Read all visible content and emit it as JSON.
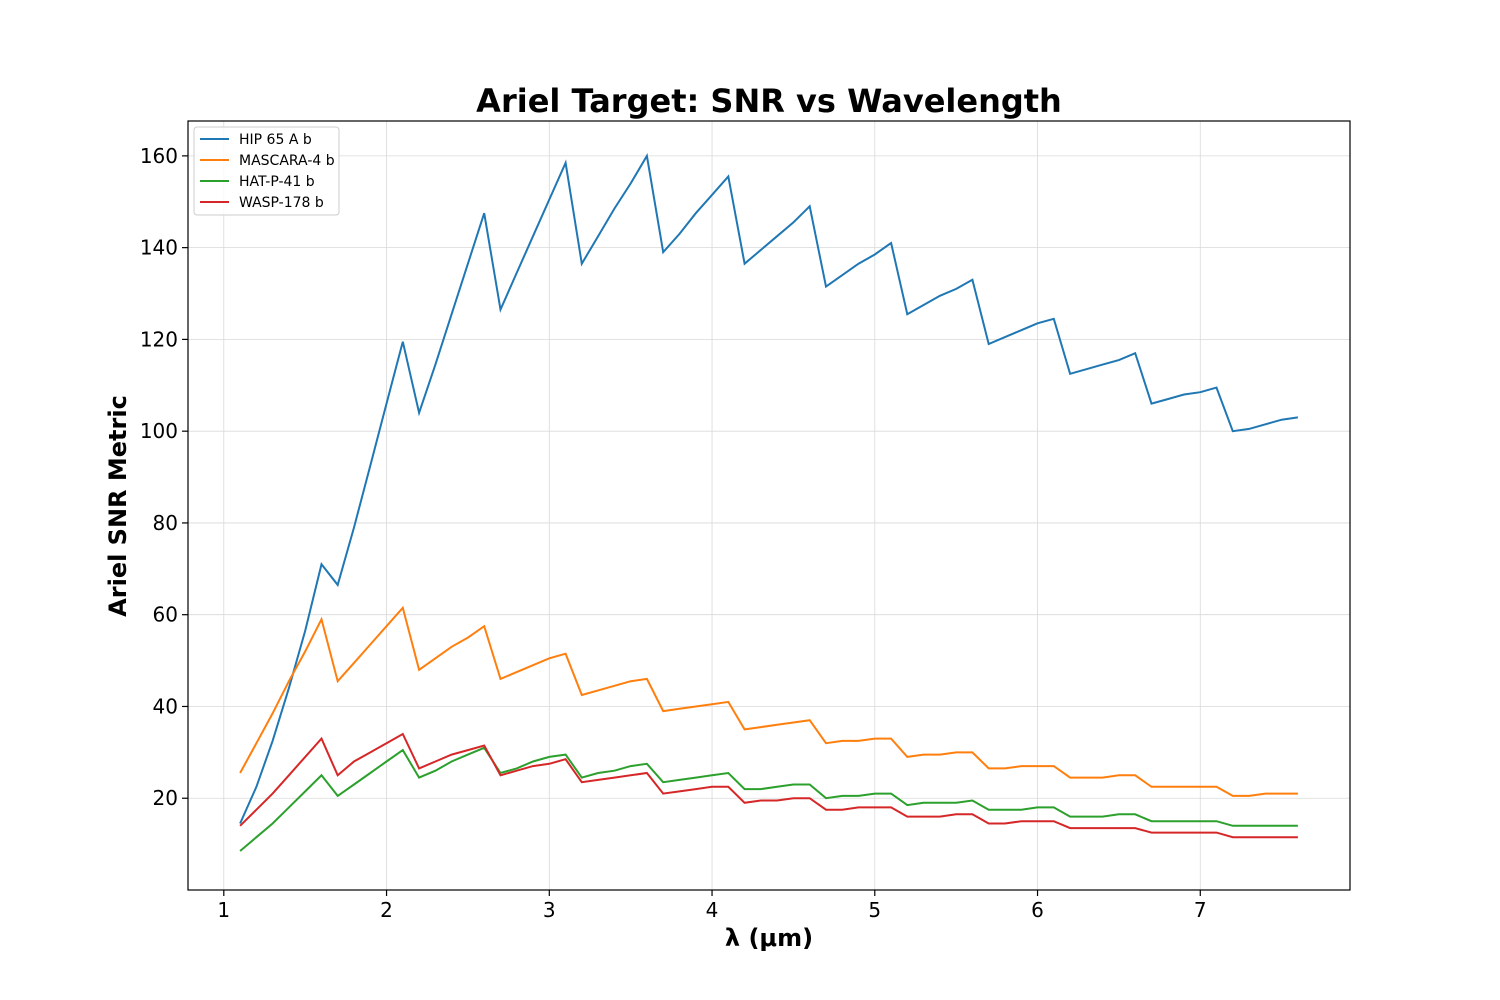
{
  "chart_data": {
    "type": "line",
    "title": "Ariel Target: SNR vs Wavelength",
    "xlabel": "λ (μm)",
    "ylabel": "Ariel SNR Metric",
    "xlim": [
      0.78,
      7.92
    ],
    "ylim": [
      0,
      167.6
    ],
    "xticks": [
      1,
      2,
      3,
      4,
      5,
      6,
      7
    ],
    "yticks": [
      20,
      40,
      60,
      80,
      100,
      120,
      140,
      160
    ],
    "grid": true,
    "legend_position": "upper-left",
    "x": [
      1.1,
      1.2,
      1.3,
      1.4,
      1.5,
      1.6,
      1.7,
      1.8,
      1.9,
      2.0,
      2.1,
      2.2,
      2.3,
      2.4,
      2.5,
      2.6,
      2.7,
      2.8,
      2.9,
      3.0,
      3.1,
      3.2,
      3.3,
      3.4,
      3.5,
      3.6,
      3.7,
      3.8,
      3.9,
      4.0,
      4.1,
      4.2,
      4.3,
      4.4,
      4.5,
      4.6,
      4.7,
      4.8,
      4.9,
      5.0,
      5.1,
      5.2,
      5.3,
      5.4,
      5.5,
      5.6,
      5.7,
      5.8,
      5.9,
      6.0,
      6.1,
      6.2,
      6.3,
      6.4,
      6.5,
      6.6,
      6.7,
      6.8,
      6.9,
      7.0,
      7.1,
      7.2,
      7.3,
      7.4,
      7.5,
      7.6
    ],
    "series": [
      {
        "name": "HIP 65 A b",
        "color": "#1f77b4",
        "values": [
          14.5,
          22.5,
          32.5,
          44.0,
          56.5,
          71.0,
          66.5,
          79.0,
          92.5,
          106.0,
          119.5,
          104.0,
          114.5,
          125.5,
          136.5,
          147.5,
          126.5,
          134.5,
          142.5,
          150.5,
          158.5,
          136.5,
          142.5,
          148.5,
          154.0,
          160.0,
          139.0,
          143.0,
          147.5,
          151.5,
          155.5,
          136.5,
          139.5,
          142.5,
          145.5,
          149.0,
          131.5,
          134.0,
          136.5,
          138.5,
          141.0,
          125.5,
          127.5,
          129.5,
          131.0,
          133.0,
          119.0,
          120.5,
          122.0,
          123.5,
          124.5,
          112.5,
          113.5,
          114.5,
          115.5,
          117.0,
          106.0,
          107.0,
          108.0,
          108.5,
          109.5,
          100.0,
          100.5,
          101.5,
          102.5,
          103.0
        ]
      },
      {
        "name": "MASCARA-4 b",
        "color": "#ff7f0e",
        "values": [
          25.5,
          32.0,
          38.5,
          45.5,
          52.0,
          59.0,
          45.5,
          49.5,
          53.5,
          57.5,
          61.5,
          48.0,
          50.5,
          53.0,
          55.0,
          57.5,
          46.0,
          47.5,
          49.0,
          50.5,
          51.5,
          42.5,
          43.5,
          44.5,
          45.5,
          46.0,
          39.0,
          39.5,
          40.0,
          40.5,
          41.0,
          35.0,
          35.5,
          36.0,
          36.5,
          37.0,
          32.0,
          32.5,
          32.5,
          33.0,
          33.0,
          29.0,
          29.5,
          29.5,
          30.0,
          30.0,
          26.5,
          26.5,
          27.0,
          27.0,
          27.0,
          24.5,
          24.5,
          24.5,
          25.0,
          25.0,
          22.5,
          22.5,
          22.5,
          22.5,
          22.5,
          20.5,
          20.5,
          21.0,
          21.0,
          21.0
        ]
      },
      {
        "name": "HAT-P-41 b",
        "color": "#2ca02c",
        "values": [
          8.5,
          11.5,
          14.5,
          18.0,
          21.5,
          25.0,
          20.5,
          23.0,
          25.5,
          28.0,
          30.5,
          24.5,
          26.0,
          28.0,
          29.5,
          31.0,
          25.5,
          26.5,
          28.0,
          29.0,
          29.5,
          24.5,
          25.5,
          26.0,
          27.0,
          27.5,
          23.5,
          24.0,
          24.5,
          25.0,
          25.5,
          22.0,
          22.0,
          22.5,
          23.0,
          23.0,
          20.0,
          20.5,
          20.5,
          21.0,
          21.0,
          18.5,
          19.0,
          19.0,
          19.0,
          19.5,
          17.5,
          17.5,
          17.5,
          18.0,
          18.0,
          16.0,
          16.0,
          16.0,
          16.5,
          16.5,
          15.0,
          15.0,
          15.0,
          15.0,
          15.0,
          14.0,
          14.0,
          14.0,
          14.0,
          14.0
        ]
      },
      {
        "name": "WASP-178 b",
        "color": "#d62728",
        "values": [
          14.0,
          17.5,
          21.0,
          25.0,
          29.0,
          33.0,
          25.0,
          28.0,
          30.0,
          32.0,
          34.0,
          26.5,
          28.0,
          29.5,
          30.5,
          31.5,
          25.0,
          26.0,
          27.0,
          27.5,
          28.5,
          23.5,
          24.0,
          24.5,
          25.0,
          25.5,
          21.0,
          21.5,
          22.0,
          22.5,
          22.5,
          19.0,
          19.5,
          19.5,
          20.0,
          20.0,
          17.5,
          17.5,
          18.0,
          18.0,
          18.0,
          16.0,
          16.0,
          16.0,
          16.5,
          16.5,
          14.5,
          14.5,
          15.0,
          15.0,
          15.0,
          13.5,
          13.5,
          13.5,
          13.5,
          13.5,
          12.5,
          12.5,
          12.5,
          12.5,
          12.5,
          11.5,
          11.5,
          11.5,
          11.5,
          11.5
        ]
      }
    ]
  }
}
